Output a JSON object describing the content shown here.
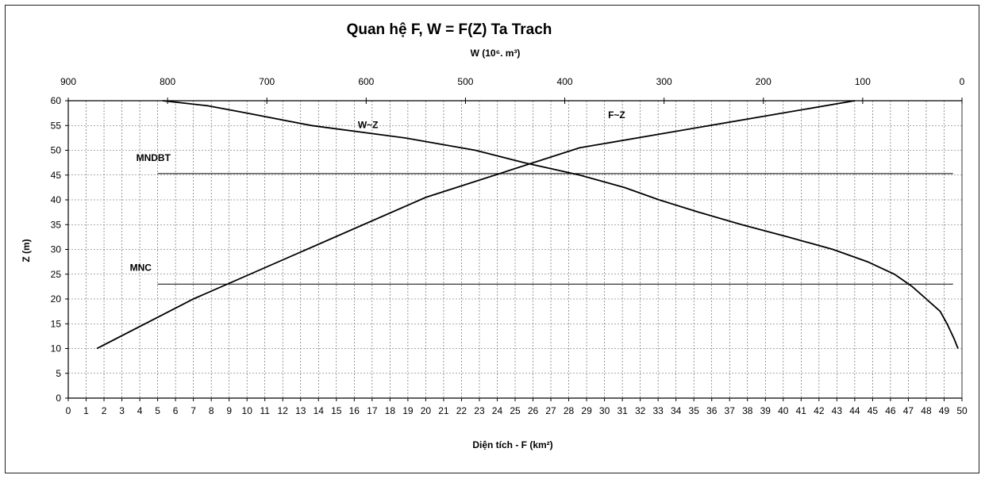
{
  "chart_data": {
    "type": "line",
    "title": "Quan hệ F, W = F(Z) Ta Trach",
    "top_axis_label": "W (10⁶. m³)",
    "xlabel": "Diện tích - F (km²)",
    "ylabel": "Z (m)",
    "xlim": [
      0,
      50
    ],
    "ylim": [
      0,
      60
    ],
    "top_xlim": [
      900,
      0
    ],
    "x_ticks": [
      0,
      1,
      2,
      3,
      4,
      5,
      6,
      7,
      8,
      9,
      10,
      11,
      12,
      13,
      14,
      15,
      16,
      17,
      18,
      19,
      20,
      21,
      22,
      23,
      24,
      25,
      26,
      27,
      28,
      29,
      30,
      31,
      32,
      33,
      34,
      35,
      36,
      37,
      38,
      39,
      40,
      41,
      42,
      43,
      44,
      45,
      46,
      47,
      48,
      49,
      50
    ],
    "y_ticks": [
      0,
      5,
      10,
      15,
      20,
      25,
      30,
      35,
      40,
      45,
      50,
      55,
      60
    ],
    "top_ticks": [
      900,
      800,
      700,
      600,
      500,
      400,
      300,
      200,
      100,
      0
    ],
    "grid": true,
    "series": [
      {
        "name": "F~Z",
        "axis": "bottom",
        "x": [
          1.6,
          7.0,
          20.0,
          28.6,
          44.0
        ],
        "y": [
          10,
          20,
          40.5,
          50.5,
          60
        ]
      },
      {
        "name": "W~Z",
        "axis": "top",
        "x": [
          4,
          8,
          15,
          22,
          36,
          50,
          68,
          95,
          130,
          175,
          222,
          265,
          305,
          340,
          385,
          441,
          490,
          561,
          655,
          720,
          760,
          805
        ],
        "y": [
          10,
          12,
          15,
          17.5,
          20,
          22.5,
          25,
          27.5,
          30,
          32.5,
          35,
          37.5,
          40,
          42.5,
          45,
          47.5,
          50,
          52.5,
          55,
          57.5,
          59,
          60
        ]
      }
    ],
    "annotations": [
      {
        "label": "MNDBT",
        "z": 45.3,
        "x_start": 5,
        "x_end": 49.5
      },
      {
        "label": "MNC",
        "z": 23,
        "x_start": 5,
        "x_end": 49.5
      }
    ]
  }
}
